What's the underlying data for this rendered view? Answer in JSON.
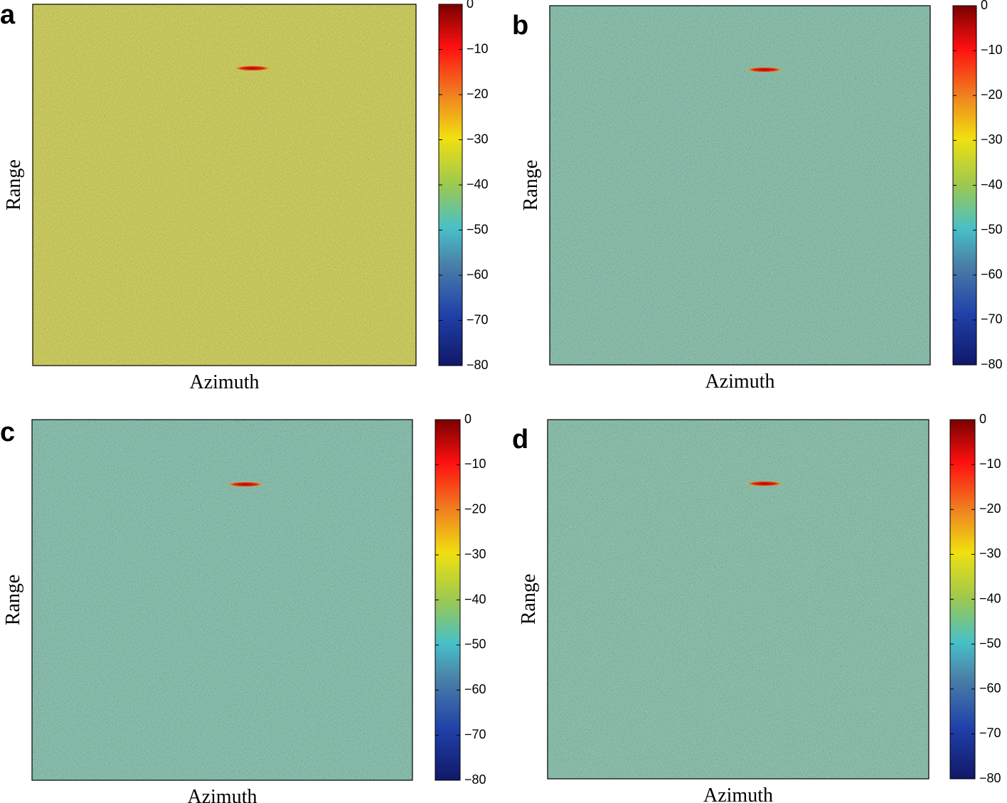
{
  "chart_data": [
    {
      "type": "heatmap",
      "panel_label": "a",
      "xlabel": "Azimuth",
      "ylabel": "Range",
      "background_color": "#d2d23c",
      "clim": [
        -80,
        0
      ],
      "cticks": [
        0,
        {
          "value": -10,
          "label": "−10"
        },
        {
          "value": -20,
          "label": "−20"
        },
        {
          "value": -30,
          "label": "−30"
        },
        {
          "value": -40,
          "label": "−40"
        },
        {
          "value": -50,
          "label": "−50"
        },
        {
          "value": -60,
          "label": "−60"
        },
        {
          "value": -70,
          "label": "−70"
        },
        {
          "value": -80,
          "label": "−80"
        }
      ]
    },
    {
      "type": "heatmap",
      "panel_label": "b",
      "xlabel": "Azimuth",
      "ylabel": "Range",
      "background_color": "#76bfa6",
      "clim": [
        -80,
        0
      ],
      "cticks": [
        0,
        {
          "value": -10,
          "label": "−10"
        },
        {
          "value": -20,
          "label": "−20"
        },
        {
          "value": -30,
          "label": "−30"
        },
        {
          "value": -40,
          "label": "−40"
        },
        {
          "value": -50,
          "label": "−50"
        },
        {
          "value": -60,
          "label": "−60"
        },
        {
          "value": -70,
          "label": "−70"
        },
        {
          "value": -80,
          "label": "−80"
        }
      ]
    },
    {
      "type": "heatmap",
      "panel_label": "c",
      "xlabel": "Azimuth",
      "ylabel": "Range",
      "background_color": "#74bfaa",
      "clim": [
        -80,
        0
      ],
      "cticks": [
        0,
        {
          "value": -10,
          "label": "−10"
        },
        {
          "value": -20,
          "label": "−20"
        },
        {
          "value": -30,
          "label": "−30"
        },
        {
          "value": -40,
          "label": "−40"
        },
        {
          "value": -50,
          "label": "−50"
        },
        {
          "value": -60,
          "label": "−60"
        },
        {
          "value": -70,
          "label": "−70"
        },
        {
          "value": -80,
          "label": "−80"
        }
      ]
    },
    {
      "type": "heatmap",
      "panel_label": "d",
      "xlabel": "Azimuth",
      "ylabel": "Range",
      "background_color": "#78c0a6",
      "clim": [
        -80,
        0
      ],
      "cticks": [
        0,
        {
          "value": -10,
          "label": "−10"
        },
        {
          "value": -20,
          "label": "−20"
        },
        {
          "value": -30,
          "label": "−30"
        },
        {
          "value": -40,
          "label": "−40"
        },
        {
          "value": -50,
          "label": "−50"
        },
        {
          "value": -60,
          "label": "−60"
        },
        {
          "value": -70,
          "label": "−70"
        },
        {
          "value": -80,
          "label": "−80"
        }
      ]
    }
  ]
}
